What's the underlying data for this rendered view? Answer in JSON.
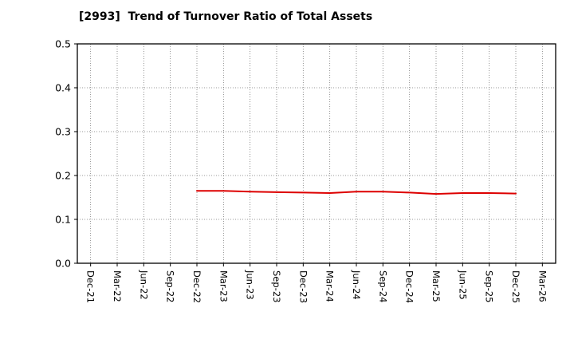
{
  "chart_data": {
    "type": "line",
    "title": "[2993]  Trend of Turnover Ratio of Total Assets",
    "xlabel": "",
    "ylabel": "",
    "ylim": [
      0.0,
      0.5
    ],
    "yticks": [
      0.0,
      0.1,
      0.2,
      0.3,
      0.4,
      0.5
    ],
    "grid": "dotted",
    "legend_position": "none",
    "categories": [
      "Dec-21",
      "Mar-22",
      "Jun-22",
      "Sep-22",
      "Dec-22",
      "Mar-23",
      "Jun-23",
      "Sep-23",
      "Dec-23",
      "Mar-24",
      "Jun-24",
      "Sep-24",
      "Dec-24",
      "Mar-25",
      "Jun-25",
      "Sep-25",
      "Dec-25",
      "Mar-26"
    ],
    "series": [
      {
        "name": "Turnover Ratio of Total Assets",
        "color": "#dd0000",
        "values": [
          null,
          null,
          null,
          null,
          0.165,
          0.165,
          0.163,
          0.162,
          0.161,
          0.16,
          0.163,
          0.163,
          0.161,
          0.158,
          0.16,
          0.16,
          0.159,
          null
        ]
      }
    ],
    "colors": {
      "axis": "#000000",
      "gridline": "#777777",
      "background": "#ffffff",
      "title_text": "#000000",
      "tick_text": "#000000"
    }
  }
}
